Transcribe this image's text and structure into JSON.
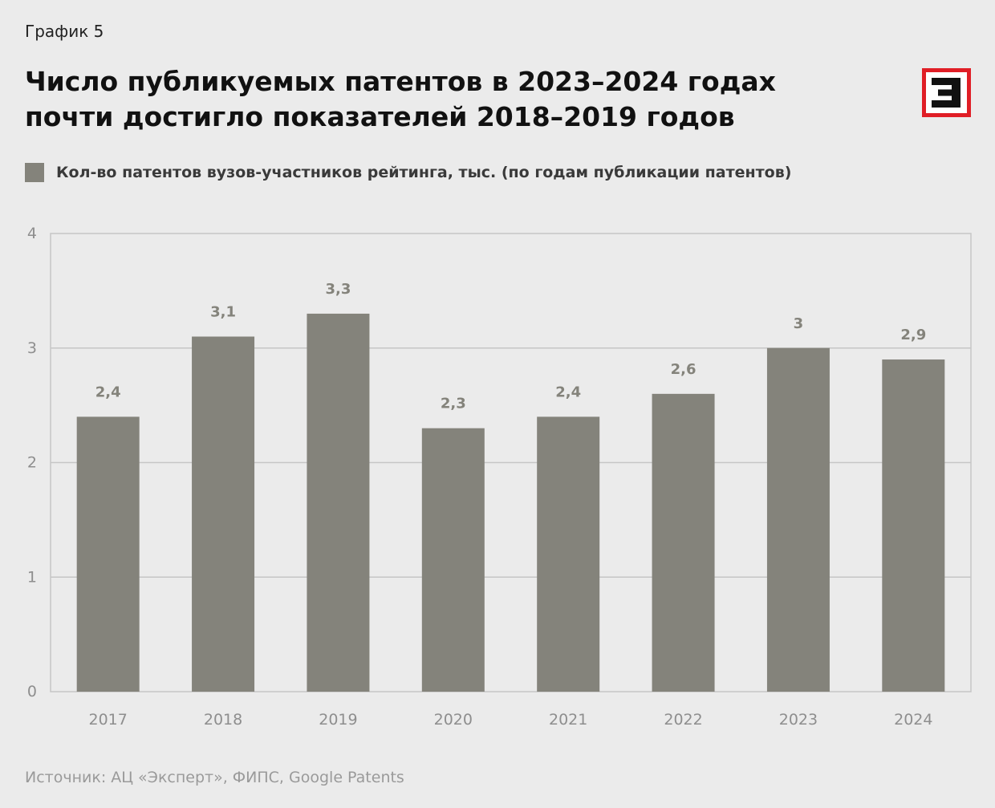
{
  "header": {
    "kicker": "График 5",
    "title": "Число публикуемых патентов в 2023–2024 годах почти достигло показателей 2018–2019 годов"
  },
  "legend": {
    "label": "Кол-во патентов вузов-участников рейтинга, тыс. (по годам публикации патентов)"
  },
  "footer": {
    "source": "Источник: АЦ «Эксперт», ФИПС, Google Patents"
  },
  "colors": {
    "bar": "#84837b",
    "logo_red": "#e01e26"
  },
  "chart_data": {
    "type": "bar",
    "categories": [
      "2017",
      "2018",
      "2019",
      "2020",
      "2021",
      "2022",
      "2023",
      "2024"
    ],
    "values": [
      2.4,
      3.1,
      3.3,
      2.3,
      2.4,
      2.6,
      3.0,
      2.9
    ],
    "data_labels": [
      "2,4",
      "3,1",
      "3,3",
      "2,3",
      "2,4",
      "2,6",
      "3",
      "2,9"
    ],
    "yticks": [
      "0",
      "1",
      "2",
      "3",
      "4"
    ],
    "ylim": [
      0,
      4
    ],
    "grid": true,
    "legend_position": "top-left"
  }
}
